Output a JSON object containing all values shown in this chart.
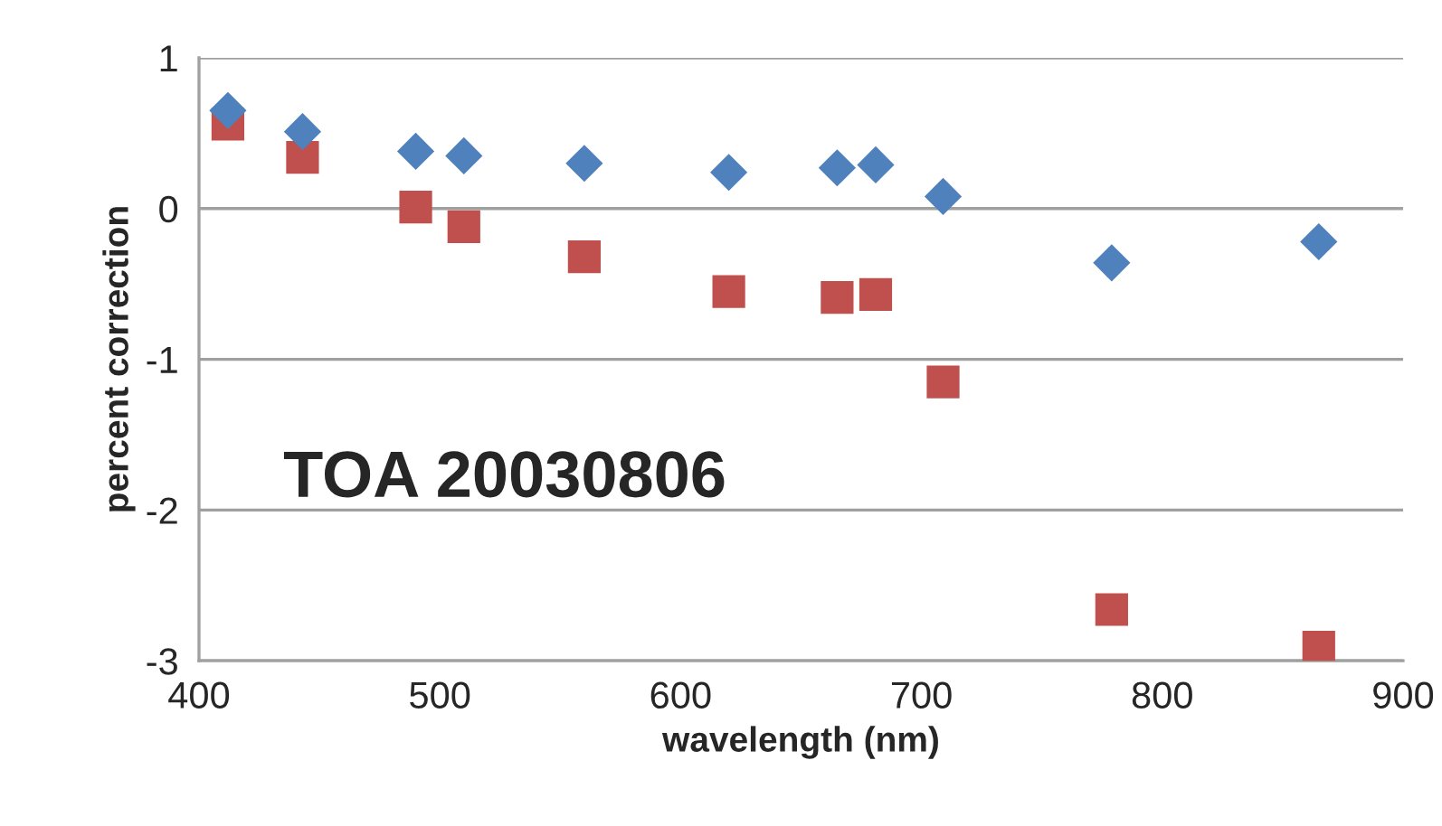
{
  "chart_data": {
    "type": "scatter",
    "xlabel": "wavelength (nm)",
    "ylabel": "percent correction",
    "annotations": [
      "TOA 20030806"
    ],
    "series": [
      {
        "color": "#4f81bd",
        "marker": "diamond",
        "x": [
          412,
          443,
          490,
          510,
          560,
          620,
          665,
          681,
          709,
          779,
          865
        ],
        "values": [
          0.65,
          0.51,
          0.38,
          0.35,
          0.3,
          0.24,
          0.27,
          0.29,
          0.08,
          -0.36,
          -0.22
        ]
      },
      {
        "color": "#c0504d",
        "marker": "square",
        "x": [
          412,
          443,
          490,
          510,
          560,
          620,
          665,
          681,
          709,
          779,
          865
        ],
        "values": [
          0.56,
          0.34,
          0.01,
          -0.12,
          -0.32,
          -0.55,
          -0.59,
          -0.57,
          -1.15,
          -2.66,
          -2.91
        ]
      }
    ],
    "xlim": [
      400,
      900
    ],
    "xticks": [
      400,
      500,
      600,
      700,
      800,
      900
    ],
    "ylim": [
      -3,
      1
    ],
    "yticks": [
      -3,
      -2,
      -1,
      0,
      1
    ],
    "grid": "y",
    "legend": false
  }
}
